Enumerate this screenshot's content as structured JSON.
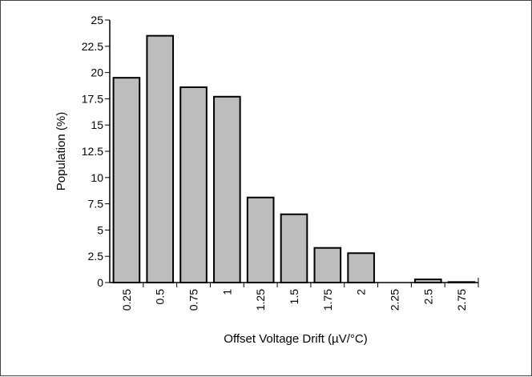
{
  "chart_data": {
    "type": "bar",
    "xlabel": "Offset Voltage Drift (µV/°C)",
    "ylabel": "Population  (%)",
    "categories": [
      "0.25",
      "0.5",
      "0.75",
      "1",
      "1.25",
      "1.5",
      "1.75",
      "2",
      "2.25",
      "2.5",
      "2.75"
    ],
    "values": [
      19.5,
      23.5,
      18.6,
      17.7,
      8.1,
      6.5,
      3.3,
      2.8,
      0.0,
      0.3,
      0.05
    ],
    "ylim": [
      0,
      25
    ],
    "yticks": [
      "0",
      "2.5",
      "5",
      "7.5",
      "10",
      "12.5",
      "15",
      "17.5",
      "20",
      "22.5",
      "25"
    ],
    "grid": false,
    "bar_color": "#bdbdbd",
    "bar_edge_color": "#000000"
  }
}
